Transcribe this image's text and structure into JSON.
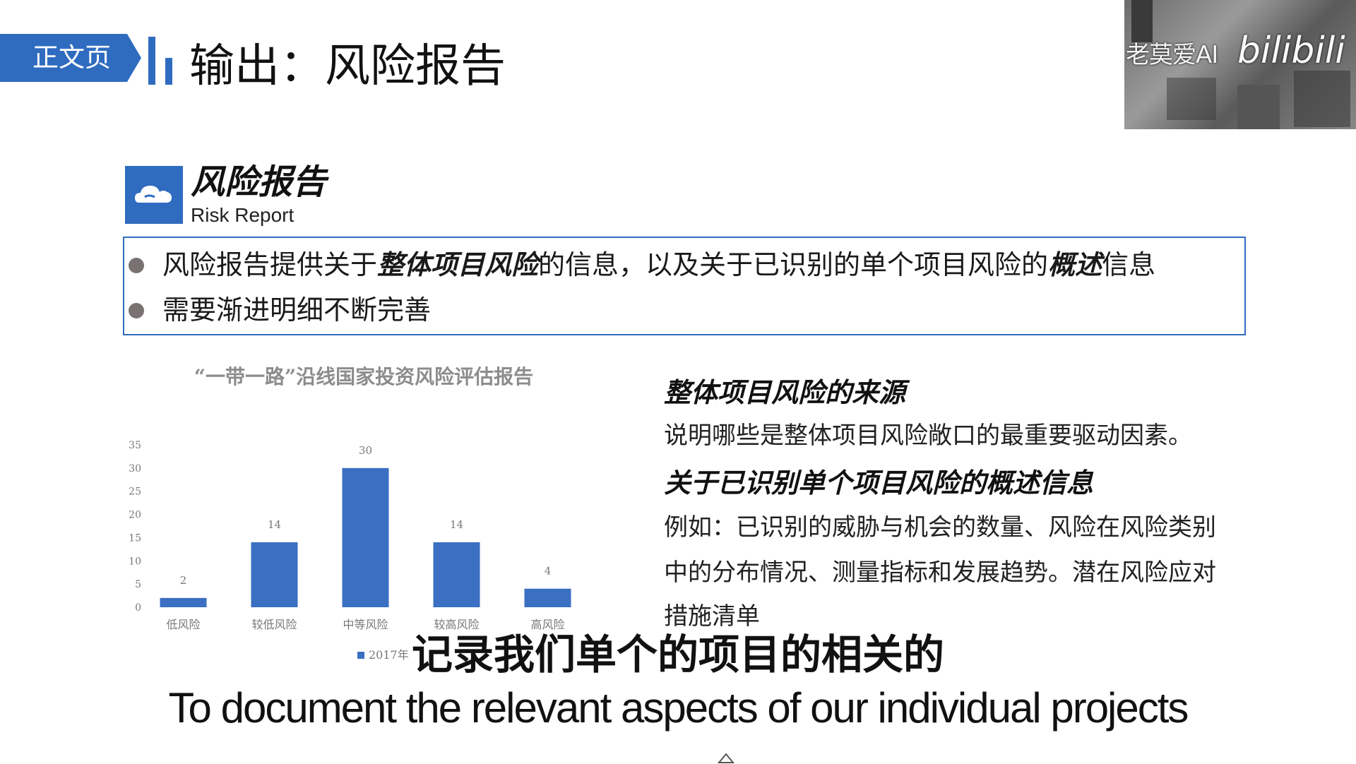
{
  "header": {
    "section_tag": "正文页",
    "title": "输出：风险报告"
  },
  "webcam": {
    "channel_name": "老莫爱AI",
    "platform_logo": "bilibili"
  },
  "section": {
    "icon": "cloud-icon",
    "title": "风险报告",
    "subtitle": "Risk Report"
  },
  "bullets": [
    {
      "parts": [
        "风险报告提供关于",
        "整体项目风险",
        "的信息，以及关于已识别的单个项目风险的",
        "概述",
        "信息"
      ]
    },
    {
      "text": "需要渐进明细不断完善"
    }
  ],
  "right_panel": {
    "heading1": "整体项目风险的来源",
    "text1": "说明哪些是整体项目风险敞口的最重要驱动因素。",
    "heading2": "关于已识别单个项目风险的概述信息",
    "text2_line1": "例如：已识别的威胁与机会的数量、风险在风险类别",
    "text2_line2": "中的分布情况、测量指标和发展趋势。潜在风险应对",
    "text2_line3": "措施清单"
  },
  "chart_data": {
    "type": "bar",
    "title": "“一带一路”沿线国家投资风险评估报告",
    "categories": [
      "低风险",
      "较低风险",
      "中等风险",
      "较高风险",
      "高风险"
    ],
    "series": [
      {
        "name": "2017年",
        "values": [
          2,
          14,
          30,
          14,
          4
        ]
      }
    ],
    "yticks": [
      "0",
      "5",
      "10",
      "15",
      "20",
      "25",
      "30",
      "35"
    ],
    "ylim": [
      0,
      35
    ],
    "grid": false,
    "legend_position": "bottom",
    "bar_color": "#3a6fc2"
  },
  "subtitles": {
    "zh": "记录我们单个的项目的相关的",
    "en": "To document the relevant aspects of our individual projects"
  },
  "colors": {
    "accent": "#2f6cc0",
    "bullet": "#7a7172"
  }
}
